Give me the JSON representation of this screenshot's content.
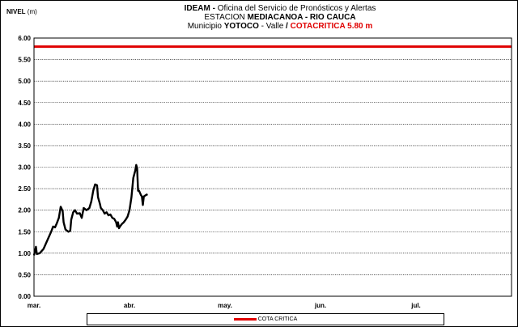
{
  "header": {
    "line1_bold": "IDEAM -",
    "line1_rest": " Oficina del Servicio de Pronósticos y Alertas",
    "line2_prefix": "ESTACION ",
    "line2_bold": "MEDIACANOA - RIO CAUCA",
    "line3_prefix": "Municipio ",
    "line3_bold": "YOTOCO",
    "line3_mid": " - Valle ",
    "line3_slash": " / ",
    "line3_red": "COTACRITICA 5.80 m"
  },
  "y_axis_label": {
    "bold": "NIVEL",
    "unit": " (m)"
  },
  "chart_data": {
    "type": "line",
    "ylim": [
      0,
      6
    ],
    "xlim": [
      "mar.",
      "jul.+"
    ],
    "y_ticks": [
      "0.00",
      "0.50",
      "1.00",
      "1.50",
      "2.00",
      "2.50",
      "3.00",
      "3.50",
      "4.00",
      "4.50",
      "5.00",
      "5.50",
      "6.00"
    ],
    "x_ticks": [
      "mar.",
      "abr.",
      "may.",
      "jun.",
      "jul."
    ],
    "grid": true,
    "legend": {
      "position": "bottom",
      "entries": [
        "COTA CRITICA"
      ]
    },
    "critical_level": {
      "name": "COTA CRITICA",
      "value": 5.8,
      "color": "#e00000"
    },
    "series": [
      {
        "color": "#000000",
        "points": [
          [
            0.0,
            0.95
          ],
          [
            0.02,
            1.15
          ],
          [
            0.03,
            0.98
          ],
          [
            0.06,
            1.0
          ],
          [
            0.1,
            1.1
          ],
          [
            0.14,
            1.3
          ],
          [
            0.18,
            1.5
          ],
          [
            0.2,
            1.62
          ],
          [
            0.22,
            1.6
          ],
          [
            0.24,
            1.7
          ],
          [
            0.26,
            1.82
          ],
          [
            0.28,
            2.08
          ],
          [
            0.3,
            1.98
          ],
          [
            0.31,
            1.72
          ],
          [
            0.33,
            1.55
          ],
          [
            0.36,
            1.5
          ],
          [
            0.38,
            1.52
          ],
          [
            0.39,
            1.78
          ],
          [
            0.41,
            1.95
          ],
          [
            0.43,
            2.0
          ],
          [
            0.45,
            1.92
          ],
          [
            0.48,
            1.93
          ],
          [
            0.5,
            1.82
          ],
          [
            0.52,
            2.05
          ],
          [
            0.55,
            2.0
          ],
          [
            0.58,
            2.05
          ],
          [
            0.6,
            2.2
          ],
          [
            0.62,
            2.45
          ],
          [
            0.64,
            2.6
          ],
          [
            0.66,
            2.58
          ],
          [
            0.67,
            2.3
          ],
          [
            0.69,
            2.15
          ],
          [
            0.7,
            2.05
          ],
          [
            0.72,
            2.0
          ],
          [
            0.74,
            1.92
          ],
          [
            0.76,
            1.95
          ],
          [
            0.78,
            1.88
          ],
          [
            0.8,
            1.9
          ],
          [
            0.82,
            1.82
          ],
          [
            0.84,
            1.8
          ],
          [
            0.86,
            1.72
          ],
          [
            0.87,
            1.62
          ],
          [
            0.88,
            1.72
          ],
          [
            0.89,
            1.58
          ],
          [
            0.9,
            1.62
          ],
          [
            0.92,
            1.68
          ],
          [
            0.94,
            1.72
          ],
          [
            0.96,
            1.78
          ],
          [
            0.98,
            1.85
          ],
          [
            1.0,
            2.0
          ],
          [
            1.02,
            2.3
          ],
          [
            1.04,
            2.75
          ],
          [
            1.06,
            2.92
          ],
          [
            1.07,
            3.05
          ],
          [
            1.08,
            2.98
          ],
          [
            1.09,
            2.45
          ],
          [
            1.1,
            2.45
          ],
          [
            1.12,
            2.35
          ],
          [
            1.13,
            2.32
          ],
          [
            1.14,
            2.12
          ],
          [
            1.15,
            2.32
          ],
          [
            1.17,
            2.35
          ],
          [
            1.19,
            2.37
          ]
        ]
      }
    ]
  }
}
